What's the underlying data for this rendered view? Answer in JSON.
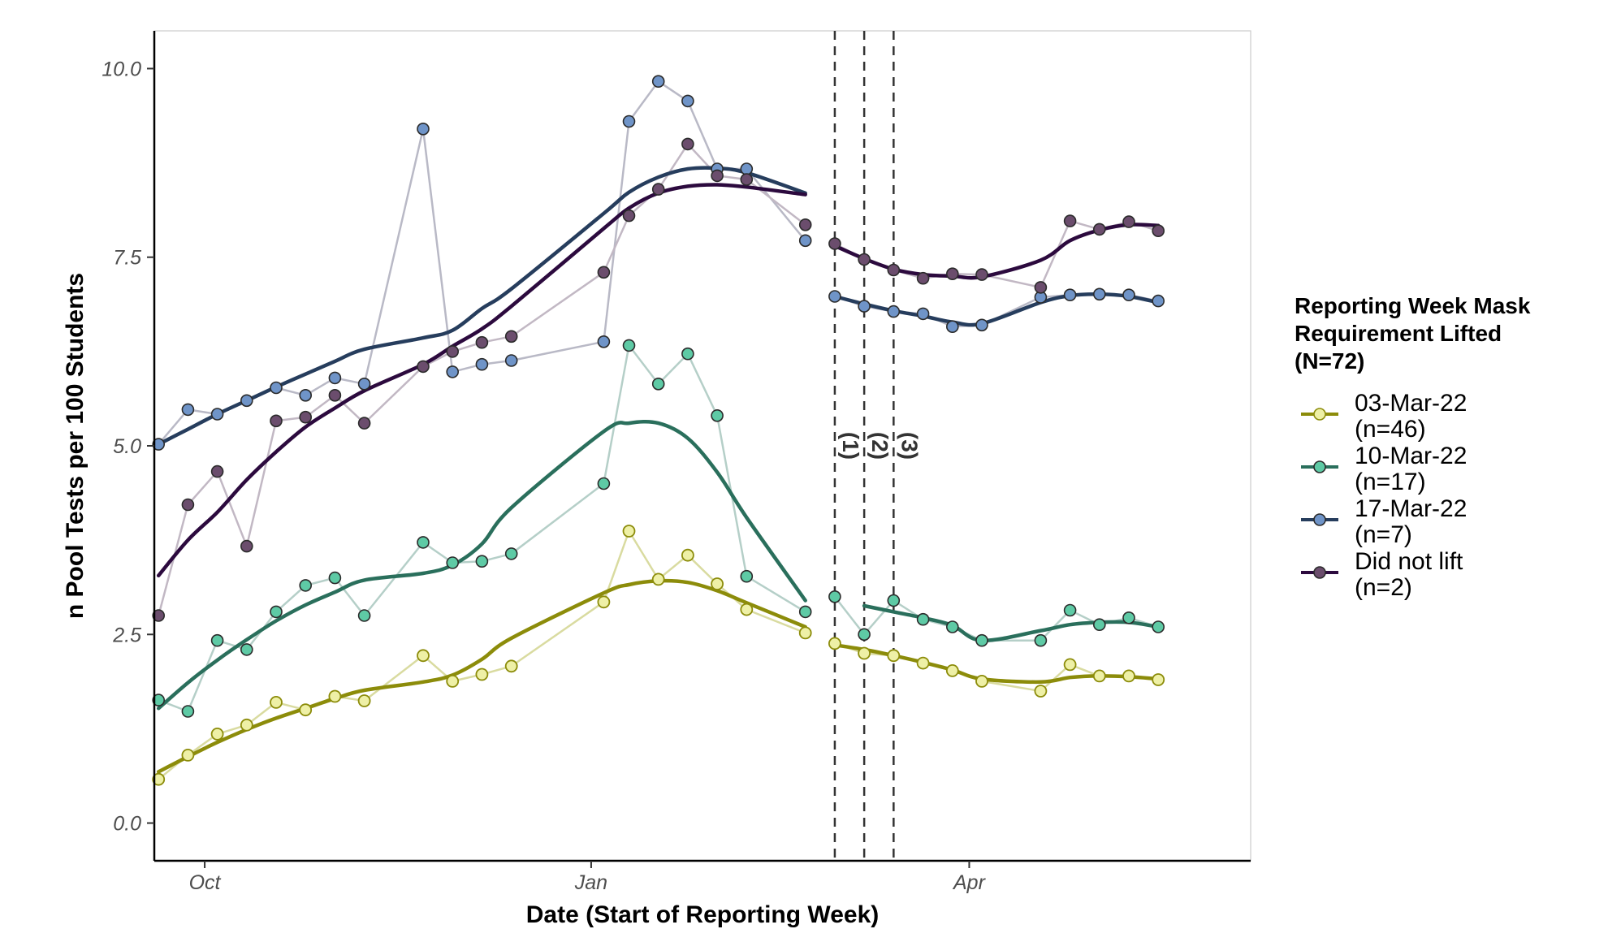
{
  "chart_data": {
    "type": "line",
    "xlabel": "Date (Start of Reporting Week)",
    "ylabel": "n Pool Tests per 100 Students",
    "x_axis_type": "date",
    "xlim": [
      "2021-09-19",
      "2022-06-07"
    ],
    "ylim": [
      -0.5,
      10.5
    ],
    "x_ticks": [
      {
        "date": "2021-10-01",
        "label": "Oct"
      },
      {
        "date": "2022-01-01",
        "label": "Jan"
      },
      {
        "date": "2022-04-01",
        "label": "Apr"
      }
    ],
    "y_ticks": [
      {
        "value": 0,
        "label": "0.0"
      },
      {
        "value": 2.5,
        "label": "2.5"
      },
      {
        "value": 5,
        "label": "5.0"
      },
      {
        "value": 7.5,
        "label": "7.5"
      },
      {
        "value": 10,
        "label": "10.0"
      }
    ],
    "grid": false,
    "legend_position": "right",
    "legend_title": [
      "Reporting Week Mask",
      "Requirement Lifted",
      "(N=72)"
    ],
    "vlines": [
      {
        "date": "2022-02-28",
        "label": "(1)"
      },
      {
        "date": "2022-03-07",
        "label": "(2)"
      },
      {
        "date": "2022-03-14",
        "label": "(3)"
      }
    ],
    "series": [
      {
        "name": "03-Mar-22",
        "count": "(n=46)",
        "color": "#8c8c0a",
        "point_fill": "#eef0a6",
        "raw_line_color": "#d9dba0",
        "hollow_points": true,
        "points": [
          [
            "2021-09-20",
            0.58
          ],
          [
            "2021-09-27",
            0.9
          ],
          [
            "2021-10-04",
            1.18
          ],
          [
            "2021-10-11",
            1.3
          ],
          [
            "2021-10-18",
            1.6
          ],
          [
            "2021-10-25",
            1.5
          ],
          [
            "2021-11-01",
            1.68
          ],
          [
            "2021-11-08",
            1.62
          ],
          [
            "2021-11-22",
            2.22
          ],
          [
            "2021-11-29",
            1.88
          ],
          [
            "2021-12-06",
            1.97
          ],
          [
            "2021-12-13",
            2.08
          ],
          [
            "2022-01-04",
            2.93
          ],
          [
            "2022-01-10",
            3.87
          ],
          [
            "2022-01-17",
            3.23
          ],
          [
            "2022-01-24",
            3.55
          ],
          [
            "2022-01-31",
            3.17
          ],
          [
            "2022-02-07",
            2.83
          ],
          [
            "2022-02-21",
            2.52
          ],
          [
            "2022-02-28",
            2.38
          ],
          [
            "2022-03-07",
            2.25
          ],
          [
            "2022-03-14",
            2.22
          ],
          [
            "2022-03-21",
            2.12
          ],
          [
            "2022-03-28",
            2.02
          ],
          [
            "2022-04-04",
            1.88
          ],
          [
            "2022-04-18",
            1.75
          ],
          [
            "2022-04-25",
            2.1
          ],
          [
            "2022-05-02",
            1.95
          ],
          [
            "2022-05-09",
            1.95
          ],
          [
            "2022-05-16",
            1.9
          ]
        ],
        "smooth": [
          [
            "2021-09-20",
            0.68
          ],
          [
            "2021-09-27",
            0.88
          ],
          [
            "2021-10-04",
            1.07
          ],
          [
            "2021-10-11",
            1.24
          ],
          [
            "2021-10-18",
            1.39
          ],
          [
            "2021-10-25",
            1.52
          ],
          [
            "2021-11-01",
            1.65
          ],
          [
            "2021-11-08",
            1.76
          ],
          [
            "2021-11-22",
            1.87
          ],
          [
            "2021-11-29",
            1.96
          ],
          [
            "2021-12-06",
            2.17
          ],
          [
            "2021-12-13",
            2.45
          ],
          [
            "2022-01-04",
            3.05
          ],
          [
            "2022-01-10",
            3.16
          ],
          [
            "2022-01-17",
            3.21
          ],
          [
            "2022-01-24",
            3.19
          ],
          [
            "2022-01-31",
            3.08
          ],
          [
            "2022-02-07",
            2.92
          ],
          [
            "2022-02-21",
            2.6
          ]
        ],
        "smooth_post": [
          [
            "2022-02-28",
            2.36
          ],
          [
            "2022-03-07",
            2.3
          ],
          [
            "2022-03-14",
            2.22
          ],
          [
            "2022-03-21",
            2.13
          ],
          [
            "2022-03-28",
            2.03
          ],
          [
            "2022-04-04",
            1.91
          ],
          [
            "2022-04-18",
            1.87
          ],
          [
            "2022-04-25",
            1.93
          ],
          [
            "2022-05-02",
            1.95
          ],
          [
            "2022-05-09",
            1.94
          ],
          [
            "2022-05-16",
            1.91
          ]
        ]
      },
      {
        "name": "10-Mar-22",
        "count": "(n=17)",
        "color": "#2a6f5c",
        "point_fill": "#5ecaa5",
        "raw_line_color": "#b5cfc8",
        "hollow_points": false,
        "points": [
          [
            "2021-09-20",
            1.63
          ],
          [
            "2021-09-27",
            1.48
          ],
          [
            "2021-10-04",
            2.42
          ],
          [
            "2021-10-11",
            2.3
          ],
          [
            "2021-10-18",
            2.8
          ],
          [
            "2021-10-25",
            3.15
          ],
          [
            "2021-11-01",
            3.25
          ],
          [
            "2021-11-08",
            2.75
          ],
          [
            "2021-11-22",
            3.72
          ],
          [
            "2021-11-29",
            3.45
          ],
          [
            "2021-12-06",
            3.47
          ],
          [
            "2021-12-13",
            3.57
          ],
          [
            "2022-01-04",
            4.5
          ],
          [
            "2022-01-10",
            6.33
          ],
          [
            "2022-01-17",
            5.82
          ],
          [
            "2022-01-24",
            6.22
          ],
          [
            "2022-01-31",
            5.4
          ],
          [
            "2022-02-07",
            3.27
          ],
          [
            "2022-02-21",
            2.8
          ],
          [
            "2022-02-28",
            3.0
          ],
          [
            "2022-03-07",
            2.5
          ],
          [
            "2022-03-14",
            2.95
          ],
          [
            "2022-03-21",
            2.7
          ],
          [
            "2022-03-28",
            2.6
          ],
          [
            "2022-04-04",
            2.42
          ],
          [
            "2022-04-18",
            2.42
          ],
          [
            "2022-04-25",
            2.82
          ],
          [
            "2022-05-02",
            2.63
          ],
          [
            "2022-05-09",
            2.72
          ],
          [
            "2022-05-16",
            2.6
          ]
        ],
        "smooth": [
          [
            "2021-09-20",
            1.52
          ],
          [
            "2021-09-27",
            1.86
          ],
          [
            "2021-10-04",
            2.16
          ],
          [
            "2021-10-11",
            2.43
          ],
          [
            "2021-10-18",
            2.68
          ],
          [
            "2021-10-25",
            2.89
          ],
          [
            "2021-11-01",
            3.06
          ],
          [
            "2021-11-08",
            3.22
          ],
          [
            "2021-11-22",
            3.31
          ],
          [
            "2021-11-29",
            3.42
          ],
          [
            "2021-12-06",
            3.7
          ],
          [
            "2021-12-13",
            4.18
          ],
          [
            "2022-01-04",
            5.19
          ],
          [
            "2022-01-10",
            5.3
          ],
          [
            "2022-01-17",
            5.3
          ],
          [
            "2022-01-24",
            5.1
          ],
          [
            "2022-01-31",
            4.65
          ],
          [
            "2022-02-07",
            4.05
          ],
          [
            "2022-02-21",
            2.95
          ]
        ],
        "smooth_post": [
          [
            "2022-03-07",
            2.88
          ],
          [
            "2022-03-14",
            2.8
          ],
          [
            "2022-03-21",
            2.72
          ],
          [
            "2022-03-28",
            2.62
          ],
          [
            "2022-04-04",
            2.42
          ],
          [
            "2022-04-18",
            2.55
          ],
          [
            "2022-04-25",
            2.63
          ],
          [
            "2022-05-02",
            2.66
          ],
          [
            "2022-05-09",
            2.66
          ],
          [
            "2022-05-16",
            2.6
          ]
        ]
      },
      {
        "name": "17-Mar-22",
        "count": "(n=7)",
        "color": "#263d5d",
        "point_fill": "#6f94c8",
        "raw_line_color": "#b9b9c6",
        "hollow_points": false,
        "points": [
          [
            "2021-09-20",
            5.02
          ],
          [
            "2021-09-27",
            5.48
          ],
          [
            "2021-10-04",
            5.42
          ],
          [
            "2021-10-11",
            5.6
          ],
          [
            "2021-10-18",
            5.77
          ],
          [
            "2021-10-25",
            5.67
          ],
          [
            "2021-11-01",
            5.9
          ],
          [
            "2021-11-08",
            5.82
          ],
          [
            "2021-11-22",
            9.2
          ],
          [
            "2021-11-29",
            5.98
          ],
          [
            "2021-12-06",
            6.08
          ],
          [
            "2021-12-13",
            6.13
          ],
          [
            "2022-01-04",
            6.38
          ],
          [
            "2022-01-10",
            9.3
          ],
          [
            "2022-01-17",
            9.83
          ],
          [
            "2022-01-24",
            9.57
          ],
          [
            "2022-01-31",
            8.67
          ],
          [
            "2022-02-07",
            8.67
          ],
          [
            "2022-02-21",
            7.72
          ],
          [
            "2022-02-28",
            6.98
          ],
          [
            "2022-03-07",
            6.85
          ],
          [
            "2022-03-14",
            6.78
          ],
          [
            "2022-03-21",
            6.75
          ],
          [
            "2022-03-28",
            6.58
          ],
          [
            "2022-04-04",
            6.6
          ],
          [
            "2022-04-18",
            6.97
          ],
          [
            "2022-04-25",
            7.0
          ],
          [
            "2022-05-02",
            7.01
          ],
          [
            "2022-05-09",
            7.0
          ],
          [
            "2022-05-16",
            6.92
          ]
        ],
        "smooth": [
          [
            "2021-09-20",
            5.02
          ],
          [
            "2021-09-27",
            5.22
          ],
          [
            "2021-10-04",
            5.42
          ],
          [
            "2021-10-11",
            5.6
          ],
          [
            "2021-10-18",
            5.78
          ],
          [
            "2021-10-25",
            5.95
          ],
          [
            "2021-11-01",
            6.12
          ],
          [
            "2021-11-08",
            6.28
          ],
          [
            "2021-11-22",
            6.43
          ],
          [
            "2021-11-29",
            6.53
          ],
          [
            "2021-12-06",
            6.82
          ],
          [
            "2021-12-13",
            7.08
          ],
          [
            "2022-01-04",
            8.08
          ],
          [
            "2022-01-10",
            8.36
          ],
          [
            "2022-01-17",
            8.56
          ],
          [
            "2022-01-24",
            8.67
          ],
          [
            "2022-01-31",
            8.68
          ],
          [
            "2022-02-07",
            8.62
          ],
          [
            "2022-02-21",
            8.35
          ]
        ],
        "smooth_post": [
          [
            "2022-02-28",
            6.98
          ],
          [
            "2022-03-07",
            6.88
          ],
          [
            "2022-03-14",
            6.79
          ],
          [
            "2022-03-21",
            6.72
          ],
          [
            "2022-03-28",
            6.64
          ],
          [
            "2022-04-04",
            6.62
          ],
          [
            "2022-04-18",
            6.9
          ],
          [
            "2022-04-25",
            6.99
          ],
          [
            "2022-05-02",
            7.01
          ],
          [
            "2022-05-09",
            6.98
          ],
          [
            "2022-05-16",
            6.9
          ]
        ]
      },
      {
        "name": "Did not lift",
        "count": "(n=2)",
        "color": "#2c0a3e",
        "point_fill": "#6b4d6d",
        "raw_line_color": "#c2b8c4",
        "hollow_points": false,
        "points": [
          [
            "2021-09-20",
            2.75
          ],
          [
            "2021-09-27",
            4.22
          ],
          [
            "2021-10-04",
            4.66
          ],
          [
            "2021-10-11",
            3.67
          ],
          [
            "2021-10-18",
            5.33
          ],
          [
            "2021-10-25",
            5.38
          ],
          [
            "2021-11-01",
            5.67
          ],
          [
            "2021-11-08",
            5.3
          ],
          [
            "2021-11-22",
            6.05
          ],
          [
            "2021-11-29",
            6.25
          ],
          [
            "2021-12-06",
            6.37
          ],
          [
            "2021-12-13",
            6.45
          ],
          [
            "2022-01-04",
            7.3
          ],
          [
            "2022-01-10",
            8.05
          ],
          [
            "2022-01-17",
            8.4
          ],
          [
            "2022-01-24",
            9.0
          ],
          [
            "2022-01-31",
            8.58
          ],
          [
            "2022-02-07",
            8.53
          ],
          [
            "2022-02-21",
            7.93
          ],
          [
            "2022-02-28",
            7.68
          ],
          [
            "2022-03-07",
            7.47
          ],
          [
            "2022-03-14",
            7.33
          ],
          [
            "2022-03-21",
            7.22
          ],
          [
            "2022-03-28",
            7.28
          ],
          [
            "2022-04-04",
            7.27
          ],
          [
            "2022-04-18",
            7.1
          ],
          [
            "2022-04-25",
            7.98
          ],
          [
            "2022-05-02",
            7.87
          ],
          [
            "2022-05-09",
            7.97
          ],
          [
            "2022-05-16",
            7.85
          ]
        ],
        "smooth": [
          [
            "2021-09-20",
            3.28
          ],
          [
            "2021-09-27",
            3.75
          ],
          [
            "2021-10-04",
            4.12
          ],
          [
            "2021-10-11",
            4.55
          ],
          [
            "2021-10-18",
            4.92
          ],
          [
            "2021-10-25",
            5.25
          ],
          [
            "2021-11-01",
            5.5
          ],
          [
            "2021-11-08",
            5.73
          ],
          [
            "2021-11-22",
            6.08
          ],
          [
            "2021-11-29",
            6.32
          ],
          [
            "2021-12-06",
            6.55
          ],
          [
            "2021-12-13",
            6.85
          ],
          [
            "2022-01-04",
            7.88
          ],
          [
            "2022-01-10",
            8.15
          ],
          [
            "2022-01-17",
            8.35
          ],
          [
            "2022-01-24",
            8.44
          ],
          [
            "2022-01-31",
            8.46
          ],
          [
            "2022-02-07",
            8.43
          ],
          [
            "2022-02-21",
            8.33
          ]
        ],
        "smooth_post": [
          [
            "2022-02-28",
            7.65
          ],
          [
            "2022-03-07",
            7.48
          ],
          [
            "2022-03-14",
            7.34
          ],
          [
            "2022-03-21",
            7.27
          ],
          [
            "2022-03-28",
            7.25
          ],
          [
            "2022-04-04",
            7.24
          ],
          [
            "2022-04-18",
            7.46
          ],
          [
            "2022-04-25",
            7.72
          ],
          [
            "2022-05-02",
            7.86
          ],
          [
            "2022-05-09",
            7.93
          ],
          [
            "2022-05-16",
            7.92
          ]
        ]
      }
    ]
  }
}
